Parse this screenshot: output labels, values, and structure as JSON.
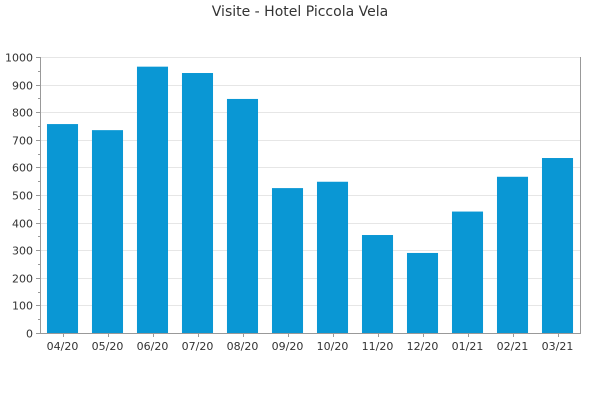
{
  "chart_data": {
    "type": "bar",
    "title": "Visite - Hotel Piccola Vela",
    "xlabel": "",
    "ylabel": "",
    "categories": [
      "04/20",
      "05/20",
      "06/20",
      "07/20",
      "08/20",
      "09/20",
      "10/20",
      "11/20",
      "12/20",
      "01/21",
      "02/21",
      "03/21"
    ],
    "values": [
      757,
      735,
      965,
      942,
      848,
      525,
      548,
      355,
      290,
      440,
      566,
      634
    ],
    "ylim": [
      0,
      1000
    ],
    "yticks": [
      0,
      100,
      200,
      300,
      400,
      500,
      600,
      700,
      800,
      900,
      1000
    ],
    "grid": true,
    "legend": "none",
    "colors": {
      "bar": "#0a97d4",
      "grid": "#e6e6e6",
      "axis": "#999999",
      "text": "#333333"
    }
  }
}
